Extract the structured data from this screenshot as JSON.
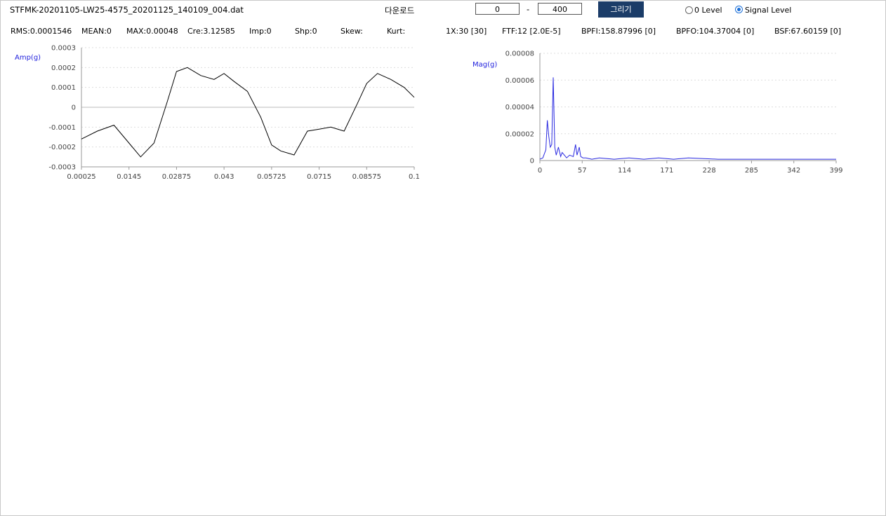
{
  "file_name": "STFMK-20201105-LW25-4575_20201125_140109_004.dat",
  "download_label": "다운로드",
  "range": {
    "from": "0",
    "separator": "-",
    "to": "400"
  },
  "draw_button": "그리기",
  "level_options": [
    {
      "label": "0 Level",
      "checked": false
    },
    {
      "label": "Signal Level",
      "checked": true
    }
  ],
  "stats": {
    "rms": "RMS:0.0001546",
    "mean": "MEAN:0",
    "max": "MAX:0.00048",
    "cre": "Cre:3.12585",
    "imp": "Imp:0",
    "shp": "Shp:0",
    "skew": "Skew:",
    "kurt": "Kurt:",
    "x1": "1X:30 [30]",
    "ftf": "FTF:12 [2.0E-5]",
    "bpfi": "BPFI:158.87996 [0]",
    "bpfo": "BPFO:104.37004 [0]",
    "bsf": "BSF:67.60159 [0]"
  },
  "chart_data": [
    {
      "type": "line",
      "ylabel": "Amp(g)",
      "color": "#000000",
      "xlim": [
        0.00025,
        0.1
      ],
      "ylim": [
        -0.0003,
        0.0003
      ],
      "x_ticks": [
        "0.00025",
        "0.0145",
        "0.02875",
        "0.043",
        "0.05725",
        "0.0715",
        "0.08575",
        "0.1"
      ],
      "y_ticks": [
        "0.0003",
        "0.0002",
        "0.0001",
        "0",
        "-0.0001",
        "-0.0002",
        "-0.0003"
      ],
      "grid": true,
      "x": [
        0.00025,
        0.005,
        0.01,
        0.0145,
        0.018,
        0.022,
        0.026,
        0.02875,
        0.032,
        0.036,
        0.04,
        0.043,
        0.046,
        0.05,
        0.054,
        0.05725,
        0.06,
        0.064,
        0.068,
        0.0715,
        0.075,
        0.079,
        0.083,
        0.08575,
        0.089,
        0.093,
        0.097,
        0.1
      ],
      "values": [
        -0.00016,
        -0.00012,
        -9e-05,
        -0.00018,
        -0.00025,
        -0.00018,
        3e-05,
        0.00018,
        0.0002,
        0.00016,
        0.00014,
        0.00017,
        0.00013,
        8e-05,
        -5e-05,
        -0.00019,
        -0.00022,
        -0.00024,
        -0.00012,
        -0.00011,
        -0.0001,
        -0.00012,
        2e-05,
        0.00012,
        0.00017,
        0.00014,
        0.0001,
        5e-05
      ]
    },
    {
      "type": "line",
      "ylabel": "Mag(g)",
      "color": "#2a2ae0",
      "xlim": [
        0,
        399
      ],
      "ylim": [
        0,
        8e-05
      ],
      "x_ticks": [
        "0",
        "57",
        "114",
        "171",
        "228",
        "285",
        "342",
        "399"
      ],
      "y_ticks": [
        "0.00008",
        "0.00006",
        "0.00004",
        "0.00002",
        "0"
      ],
      "grid": true,
      "x": [
        0,
        4,
        8,
        10,
        12,
        14,
        16,
        18,
        20,
        22,
        25,
        28,
        30,
        33,
        36,
        40,
        45,
        48,
        50,
        53,
        55,
        58,
        62,
        70,
        80,
        100,
        120,
        140,
        160,
        180,
        200,
        240,
        280,
        320,
        360,
        399
      ],
      "values": [
        1e-06,
        2e-06,
        8e-06,
        3e-05,
        1.8e-05,
        1e-05,
        1.2e-05,
        6.2e-05,
        1e-05,
        4e-06,
        1e-05,
        3e-06,
        6e-06,
        4e-06,
        2e-06,
        4e-06,
        3e-06,
        1.2e-05,
        4e-06,
        1e-05,
        3e-06,
        2e-06,
        2e-06,
        1e-06,
        2e-06,
        1e-06,
        2e-06,
        1e-06,
        2e-06,
        1e-06,
        2e-06,
        1e-06,
        1e-06,
        1e-06,
        1e-06,
        1e-06
      ]
    }
  ]
}
